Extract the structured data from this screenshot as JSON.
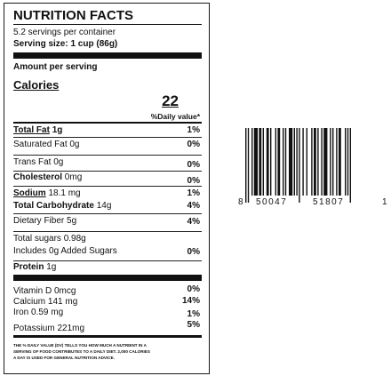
{
  "label": {
    "title": "NUTRITION FACTS",
    "servings": "5.2 servings per container",
    "serving_size": "Serving size: 1 cup (86g)",
    "amount_per_serving": "Amount per serving",
    "calories_label": "Calories",
    "calories_value": "22",
    "daily_value_header": "%Daily value*",
    "rows": {
      "total_fat": {
        "name": "Total Fat",
        "amount": "1g",
        "pct": "1%"
      },
      "saturated_fat": {
        "name": "Saturated Fat",
        "amount": "0g",
        "pct": "0%"
      },
      "trans_fat": {
        "name": "Trans Fat",
        "amount": "0g",
        "pct": "0%"
      },
      "cholesterol": {
        "name": "Cholesterol",
        "amount": "0mg",
        "pct": "0%"
      },
      "sodium": {
        "name": "Sodium",
        "amount": "18.1 mg",
        "pct": "1%"
      },
      "total_carb": {
        "name": "Total Carbohydrate",
        "amount": "14g",
        "pct": "4%"
      },
      "dietary_fiber": {
        "name": "Dietary Fiber",
        "amount": "5g",
        "pct": "4%"
      },
      "total_sugars": {
        "name": "Total sugars",
        "amount": "0.98g"
      },
      "added_sugars": {
        "name": "Includes 0g Added Sugars",
        "pct": "0%"
      },
      "protein": {
        "name": "Protein",
        "amount": "1g"
      }
    },
    "vitamins": {
      "vitamin_d": {
        "name": "Vitamin D 0mcg",
        "pct": "0%"
      },
      "calcium": {
        "name": "Calcium 141 mg",
        "pct": "14%"
      },
      "iron": {
        "name": "Iron 0.59 mg",
        "pct": "1%"
      },
      "potassium": {
        "name": "Potassium  221mg",
        "pct": "5%"
      }
    },
    "footnote": [
      "THE % DAILY VALUE (DV) TELLS YOU HOW MUCH A NUTRIENT IN A",
      "SERVING OF FOOD CONTRIBUTES TO A DAILY DIET. 2,000 CALORIES",
      "A DAY IS USED FOR GENERAL NUTRITION ADVICE."
    ]
  },
  "barcode": {
    "digits_left": "8",
    "digits_group1": "50047",
    "digits_group2": "51807",
    "digits_right": "1"
  }
}
